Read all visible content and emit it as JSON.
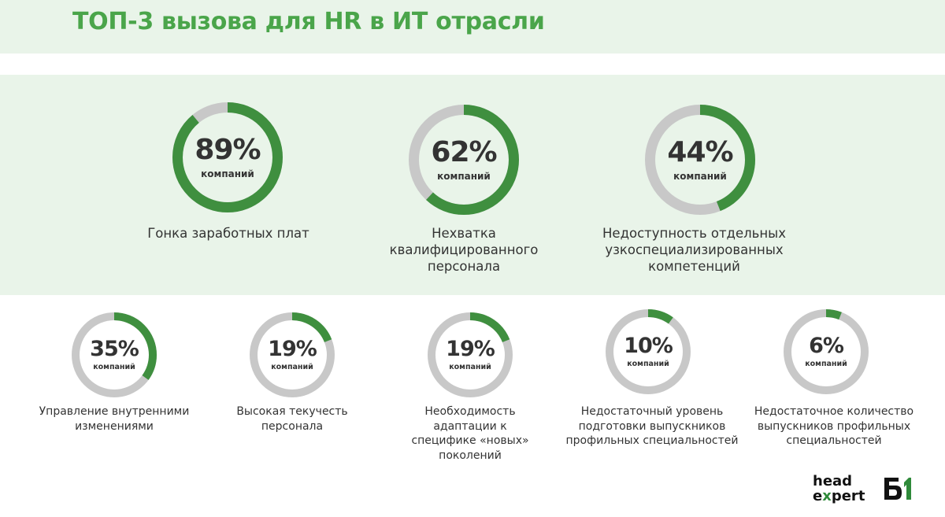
{
  "header": {
    "title": "ТОП-3 вызова для HR в ИТ отрасли"
  },
  "unit_label": "компаний",
  "top_items": [
    {
      "value": "89%",
      "fraction": 0.89,
      "caption": "Гонка заработных плат"
    },
    {
      "value": "62%",
      "fraction": 0.62,
      "caption": "Нехватка квалифицированного персонала"
    },
    {
      "value": "44%",
      "fraction": 0.44,
      "caption": "Недоступность отдельных узкоспециализированных компетенций"
    }
  ],
  "other_items": [
    {
      "value": "35%",
      "fraction": 0.35,
      "caption": "Управление внутренними изменениями"
    },
    {
      "value": "19%",
      "fraction": 0.19,
      "caption": "Высокая текучесть персонала"
    },
    {
      "value": "19%",
      "fraction": 0.19,
      "caption": "Необходимость адаптации к специфике «новых» поколений"
    },
    {
      "value": "10%",
      "fraction": 0.1,
      "caption": "Недостаточный уровень подготовки выпускников профильных специальностей"
    },
    {
      "value": "6%",
      "fraction": 0.06,
      "caption": "Недостаточное количество выпускников профильных специальностей"
    }
  ],
  "logo": {
    "line1": "head",
    "line2_a": "e",
    "line2_x": "x",
    "line2_b": "pert",
    "mark": "Б1"
  },
  "colors": {
    "accent": "#3f8f3f",
    "track": "#c8c8c8",
    "title": "#4aa54a",
    "band": "#e9f4e9"
  }
}
